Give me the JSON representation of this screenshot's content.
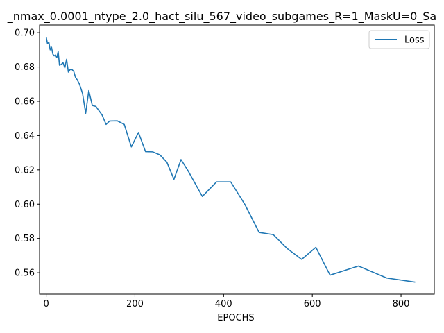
{
  "chart_data": {
    "type": "line",
    "title": "_nmax_0.0001_ntype_2.0_hact_silu_567_video_subgames_R=1_MaskU=0_Sa",
    "xlabel": "EPOCHS",
    "ylabel": "",
    "xlim": [
      -15,
      875
    ],
    "ylim": [
      0.5475,
      0.7045
    ],
    "xticks": [
      0,
      200,
      400,
      600,
      800
    ],
    "yticks": [
      0.56,
      0.58,
      0.6,
      0.62,
      0.64,
      0.66,
      0.68,
      0.7
    ],
    "ytick_labels": [
      "0.56",
      "0.58",
      "0.60",
      "0.62",
      "0.64",
      "0.66",
      "0.68",
      "0.70"
    ],
    "xtick_labels": [
      "0",
      "200",
      "400",
      "600",
      "800"
    ],
    "grid": false,
    "legend_position": "top-right",
    "line_color": "#1f77b4",
    "series": [
      {
        "name": "Loss",
        "x": [
          0,
          3,
          6,
          9,
          12,
          15,
          18,
          21,
          24,
          27,
          30,
          34,
          38,
          42,
          46,
          50,
          54,
          58,
          62,
          66,
          70,
          75,
          82,
          89,
          96,
          104,
          112,
          119,
          126,
          135,
          143,
          160,
          176,
          192,
          208,
          224,
          240,
          256,
          272,
          288,
          304,
          320,
          352,
          384,
          400,
          416,
          448,
          480,
          512,
          544,
          576,
          608,
          640,
          704,
          768,
          832
        ],
        "y": [
          0.6975,
          0.6935,
          0.6945,
          0.69,
          0.6915,
          0.6875,
          0.6865,
          0.687,
          0.6855,
          0.689,
          0.681,
          0.6815,
          0.6825,
          0.6795,
          0.6845,
          0.677,
          0.6785,
          0.6785,
          0.6775,
          0.674,
          0.6725,
          0.67,
          0.6645,
          0.653,
          0.6662,
          0.6575,
          0.657,
          0.6545,
          0.652,
          0.6465,
          0.6485,
          0.6486,
          0.6465,
          0.6334,
          0.6418,
          0.6306,
          0.6305,
          0.6288,
          0.6245,
          0.6145,
          0.626,
          0.6194,
          0.6045,
          0.613,
          0.613,
          0.613,
          0.5998,
          0.5835,
          0.5822,
          0.574,
          0.5678,
          0.5748,
          0.5586,
          0.5639,
          0.5569,
          0.5545
        ]
      }
    ]
  }
}
